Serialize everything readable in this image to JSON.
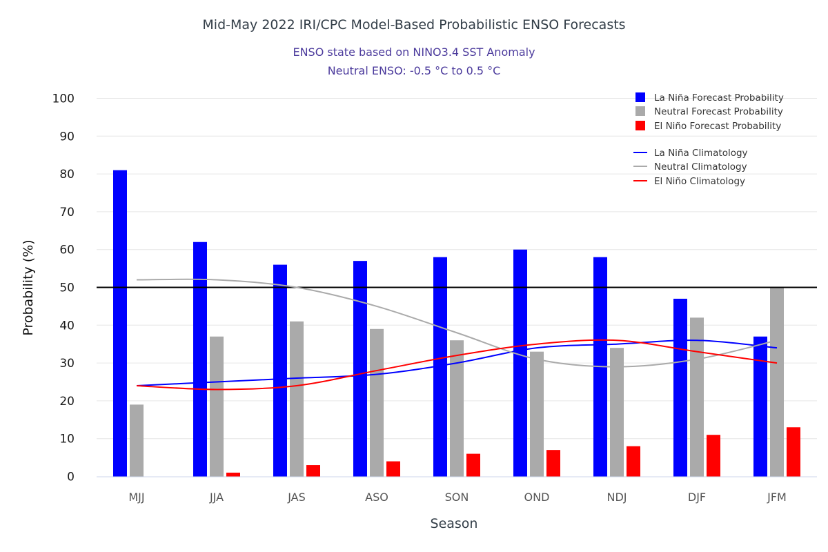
{
  "chart_data": {
    "type": "bar",
    "title": "Mid-May 2022 IRI/CPC Model-Based Probabilistic ENSO Forecasts",
    "subtitles": [
      "ENSO state based on NINO3.4 SST Anomaly",
      "Neutral ENSO: -0.5 °C to 0.5 °C"
    ],
    "xlabel": "Season",
    "ylabel": "Probability (%)",
    "ylim": [
      0,
      100
    ],
    "yticks": [
      0,
      10,
      20,
      30,
      40,
      50,
      60,
      70,
      80,
      90,
      100
    ],
    "grid": true,
    "reference_line": {
      "value": 50,
      "color": "#000000"
    },
    "legend_position": "top-right",
    "categories": [
      "MJJ",
      "JJA",
      "JAS",
      "ASO",
      "SON",
      "OND",
      "NDJ",
      "DJF",
      "JFM"
    ],
    "series": [
      {
        "name": "La Niña Forecast Probability",
        "kind": "bar",
        "color": "#0000ff",
        "values": [
          81,
          62,
          56,
          57,
          58,
          60,
          58,
          47,
          37
        ]
      },
      {
        "name": "Neutral Forecast Probability",
        "kind": "bar",
        "color": "#aaaaaa",
        "values": [
          19,
          37,
          41,
          39,
          36,
          33,
          34,
          42,
          50
        ]
      },
      {
        "name": "El Niño Forecast Probability",
        "kind": "bar",
        "color": "#ff0000",
        "values": [
          0,
          1,
          3,
          4,
          6,
          7,
          8,
          11,
          13
        ]
      },
      {
        "name": "La Niña Climatology",
        "kind": "line",
        "color": "#0000ff",
        "values": [
          24,
          25,
          26,
          27,
          30,
          34,
          35,
          36,
          34
        ]
      },
      {
        "name": "Neutral Climatology",
        "kind": "line",
        "color": "#aaaaaa",
        "values": [
          52,
          52,
          50,
          45,
          38,
          31,
          29,
          31,
          36
        ]
      },
      {
        "name": "El Niño Climatology",
        "kind": "line",
        "color": "#ff0000",
        "values": [
          24,
          23,
          24,
          28,
          32,
          35,
          36,
          33,
          30
        ]
      }
    ]
  }
}
